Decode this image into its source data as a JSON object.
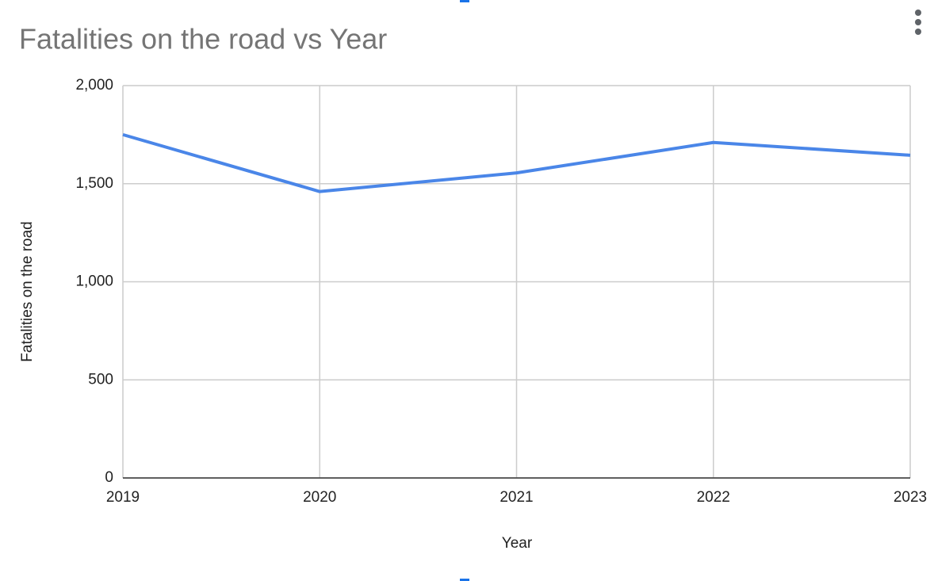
{
  "chart_data": {
    "type": "line",
    "title": "Fatalities on the road vs Year",
    "x_label": "Year",
    "y_label": "Fatalities on the road",
    "x": [
      2019,
      2020,
      2021,
      2022,
      2023
    ],
    "values": [
      1750,
      1460,
      1555,
      1710,
      1645
    ],
    "color": "#4a86e8",
    "xlim": [
      2019,
      2023
    ],
    "xticks": [
      2019,
      2020,
      2021,
      2022,
      2023
    ],
    "ylim": [
      0,
      2000
    ],
    "yticks": [
      0,
      500,
      {
        "value": 1000,
        "label": "1,000"
      },
      {
        "value": 1500,
        "label": "1,500"
      },
      {
        "value": 2000,
        "label": "2,000"
      }
    ],
    "grid": true
  }
}
